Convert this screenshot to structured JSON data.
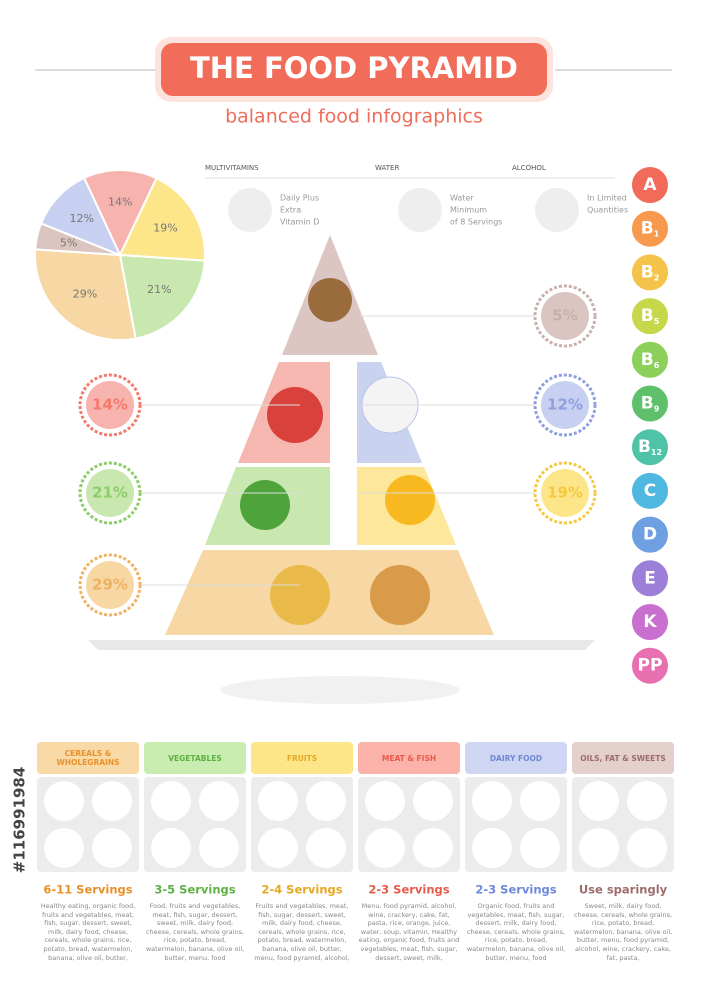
{
  "header": {
    "title": "THE FOOD PYRAMID",
    "subtitle": "balanced food infographics"
  },
  "chart_data": {
    "type": "pie",
    "values": [
      14,
      19,
      21,
      29,
      5,
      12
    ],
    "value_labels": [
      "14%",
      "19%",
      "21%",
      "29%",
      "5%",
      "12%"
    ],
    "colors": [
      "#f7b3ad",
      "#fde68a",
      "#c8e8b0",
      "#f7d7a3",
      "#dbc5c1",
      "#c7d0f0"
    ]
  },
  "extras": [
    {
      "title": "MULTIVITAMINS",
      "lines": [
        "Daily Plus",
        "Extra",
        "Vitamin D"
      ]
    },
    {
      "title": "WATER",
      "lines": [
        "Water",
        "Minimum",
        "of 8 Servings"
      ]
    },
    {
      "title": "ALCOHOL",
      "lines": [
        "In Limited",
        "Quantities"
      ]
    }
  ],
  "vitamins": [
    {
      "letter": "A",
      "sub": null
    },
    {
      "letter": "B",
      "sub": "1"
    },
    {
      "letter": "B",
      "sub": "2"
    },
    {
      "letter": "B",
      "sub": "5"
    },
    {
      "letter": "B",
      "sub": "6"
    },
    {
      "letter": "B",
      "sub": "9"
    },
    {
      "letter": "B",
      "sub": "12"
    },
    {
      "letter": "C",
      "sub": null
    },
    {
      "letter": "D",
      "sub": null
    },
    {
      "letter": "E",
      "sub": null
    },
    {
      "letter": "K",
      "sub": null
    },
    {
      "letter": "PP",
      "sub": null
    }
  ],
  "groups": [
    {
      "name": "CEREALS & WHOLEGRAINS",
      "servings": "6-11 Servings",
      "description": "Healthy eating, organic food, fruits and vegetables, meat, fish, sugar, dessert, sweet, milk, dairy food, cheese, cereals, whole grains, rice, potato, bread, watermelon, banana, olive oil, butter,"
    },
    {
      "name": "VEGETABLES",
      "servings": "3-5 Servings",
      "description": "Food, fruits and vegetables, meat, fish, sugar, dessert, sweet, milk, dairy food, cheese, cereals, whole grains, rice, potato, bread, watermelon, banana, olive oil, butter, menu, food"
    },
    {
      "name": "FRUITS",
      "servings": "2-4 Servings",
      "description": "Fruits and vegetables, meat, fish, sugar, dessert, sweet, milk, dairy food, cheese, cereals, whole grains, rice, potato, bread, watermelon, banana, olive oil, butter, menu, food pyramid, alcohol,"
    },
    {
      "name": "MEAT & FISH",
      "servings": "2-3 Servings",
      "description": "Menu, food pyramid, alcohol, wine, crackery, cake, fat, pasta, rice, orange, juice, water, soup, vitamin, Healthy eating, organic food, fruits and vegetables, meat, fish, sugar, dessert, sweet, milk,"
    },
    {
      "name": "DAIRY FOOD",
      "servings": "2-3 Servings",
      "description": "Organic food, fruits and vegetables, meat, fish, sugar, dessert, milk, dairy food, cheese, cereals, whole grains, rice, potato, bread, watermelon, banana, olive oil, butter, menu, food"
    },
    {
      "name": "OILS, FAT & SWEETS",
      "servings": "Use sparingly",
      "description": "Sweet, milk, dairy food, cheese, cereals, whole grains, rice, potato, bread, watermelon, banana, olive oil, butter, menu, food pyramid, alcohol, wine, crackery, cake, fat, pasta,"
    }
  ],
  "stock_id": "#116991984"
}
